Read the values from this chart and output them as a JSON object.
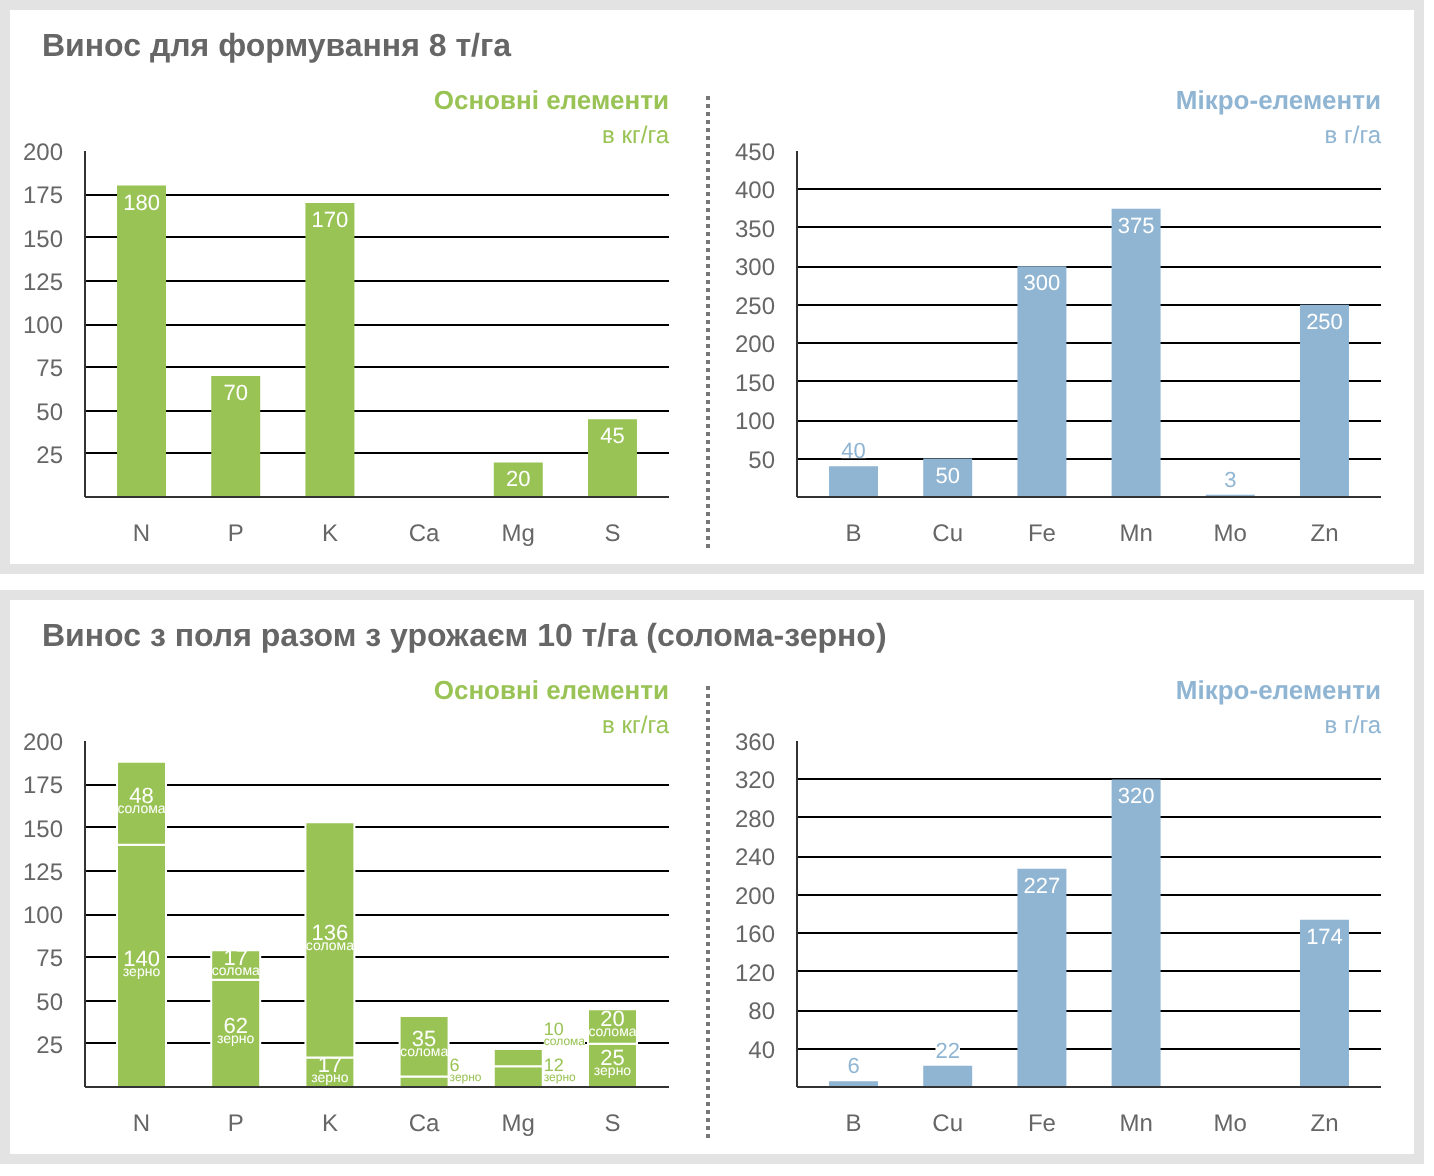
{
  "chart_data": [
    {
      "type": "bar",
      "annotations": [
        "Винос для формування 8 т/га"
      ],
      "title": "Основні елементи",
      "subtitle": "в кг/га",
      "categories": [
        "N",
        "P",
        "K",
        "Ca",
        "Mg",
        "S"
      ],
      "values": [
        180,
        70,
        170,
        null,
        20,
        45
      ],
      "color": "#99c355",
      "ylim": [
        0,
        200
      ],
      "yticks": [
        25,
        50,
        75,
        100,
        125,
        150,
        175,
        200
      ],
      "grid": "y",
      "data_labels": true
    },
    {
      "type": "bar",
      "title": "Мікро-елементи",
      "subtitle": "в г/га",
      "categories": [
        "B",
        "Cu",
        "Fe",
        "Mn",
        "Mo",
        "Zn"
      ],
      "values": [
        40,
        50,
        300,
        375,
        3,
        250
      ],
      "color": "#8fb5d3",
      "ylim": [
        0,
        450
      ],
      "yticks": [
        50,
        100,
        150,
        200,
        250,
        300,
        350,
        400,
        450
      ],
      "grid": "y",
      "data_labels": true
    },
    {
      "type": "bar",
      "annotations": [
        "Винос з поля разом з урожаєм 10 т/га (солома-зерно)"
      ],
      "title": "Основні елементи",
      "subtitle": "в кг/га",
      "categories": [
        "N",
        "P",
        "K",
        "Ca",
        "Mg",
        "S"
      ],
      "stacked": true,
      "series": [
        {
          "name": "зерно",
          "color": "#99c355",
          "values": [
            140,
            62,
            17,
            6,
            12,
            25
          ]
        },
        {
          "name": "солома",
          "color": "#99c355",
          "values": [
            48,
            17,
            136,
            35,
            10,
            20
          ]
        }
      ],
      "ylim": [
        0,
        200
      ],
      "yticks": [
        25,
        50,
        75,
        100,
        125,
        150,
        175,
        200
      ],
      "grid": "y",
      "data_labels": true
    },
    {
      "type": "bar",
      "title": "Мікро-елементи",
      "subtitle": "в г/га",
      "categories": [
        "B",
        "Cu",
        "Fe",
        "Mn",
        "Mo",
        "Zn"
      ],
      "values": [
        6,
        22,
        227,
        320,
        null,
        174
      ],
      "color": "#8fb5d3",
      "ylim": [
        0,
        360
      ],
      "yticks": [
        40,
        80,
        120,
        160,
        200,
        240,
        280,
        320,
        360
      ],
      "grid": "y",
      "data_labels": true
    }
  ]
}
